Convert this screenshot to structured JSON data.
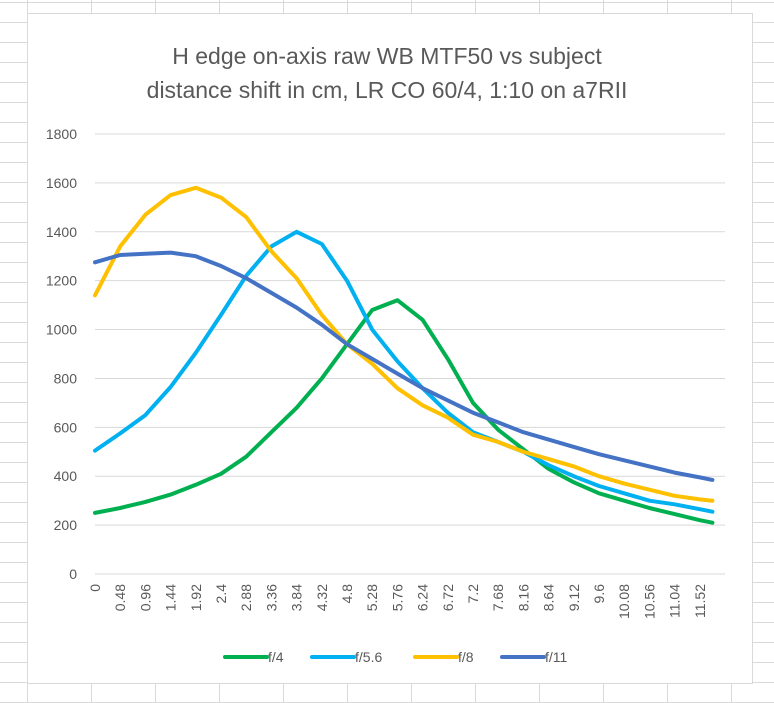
{
  "chart_data": {
    "type": "line",
    "title_lines": [
      "H edge on-axis raw WB MTF50 vs subject",
      "distance shift in cm, LR CO 60/4, 1:10 on a7RII"
    ],
    "xlabel": "",
    "ylabel": "",
    "ylim": [
      0,
      1800
    ],
    "yticks": [
      0,
      200,
      400,
      600,
      800,
      1000,
      1200,
      1400,
      1600,
      1800
    ],
    "x_tick_labels": [
      "0",
      "0.48",
      "0.96",
      "1.44",
      "1.92",
      "2.4",
      "2.88",
      "3.36",
      "3.84",
      "4.32",
      "4.8",
      "5.28",
      "5.76",
      "6.24",
      "6.72",
      "7.2",
      "7.68",
      "8.16",
      "8.64",
      "9.12",
      "9.6",
      "10.08",
      "10.56",
      "11.04",
      "11.52"
    ],
    "x": [
      0,
      0.48,
      0.96,
      1.44,
      1.92,
      2.4,
      2.88,
      3.36,
      3.84,
      4.32,
      4.8,
      5.28,
      5.76,
      6.24,
      6.72,
      7.2,
      7.68,
      8.16,
      8.64,
      9.12,
      9.6,
      10.08,
      10.56,
      11.04,
      11.52,
      11.76
    ],
    "grid": "horizontal",
    "legend_position": "bottom",
    "series": [
      {
        "name": "f/4",
        "color": "#00b050",
        "values": [
          250,
          270,
          295,
          325,
          365,
          410,
          480,
          580,
          680,
          800,
          940,
          1080,
          1120,
          1040,
          880,
          700,
          590,
          510,
          430,
          375,
          330,
          300,
          270,
          245,
          220,
          210
        ]
      },
      {
        "name": "f/5.6",
        "color": "#00b0f0",
        "values": [
          505,
          575,
          650,
          765,
          905,
          1060,
          1220,
          1340,
          1400,
          1350,
          1200,
          1000,
          870,
          760,
          660,
          580,
          540,
          500,
          445,
          400,
          360,
          330,
          300,
          285,
          265,
          255
        ]
      },
      {
        "name": "f/8",
        "color": "#ffc000",
        "values": [
          1140,
          1340,
          1470,
          1550,
          1580,
          1540,
          1460,
          1320,
          1210,
          1060,
          940,
          860,
          760,
          690,
          640,
          570,
          540,
          500,
          470,
          440,
          400,
          370,
          345,
          320,
          305,
          300
        ]
      },
      {
        "name": "f/11",
        "color": "#4472c4",
        "values": [
          1275,
          1305,
          1310,
          1315,
          1300,
          1260,
          1210,
          1150,
          1090,
          1020,
          940,
          880,
          820,
          760,
          710,
          660,
          620,
          580,
          550,
          520,
          490,
          465,
          440,
          415,
          395,
          385
        ]
      }
    ]
  }
}
